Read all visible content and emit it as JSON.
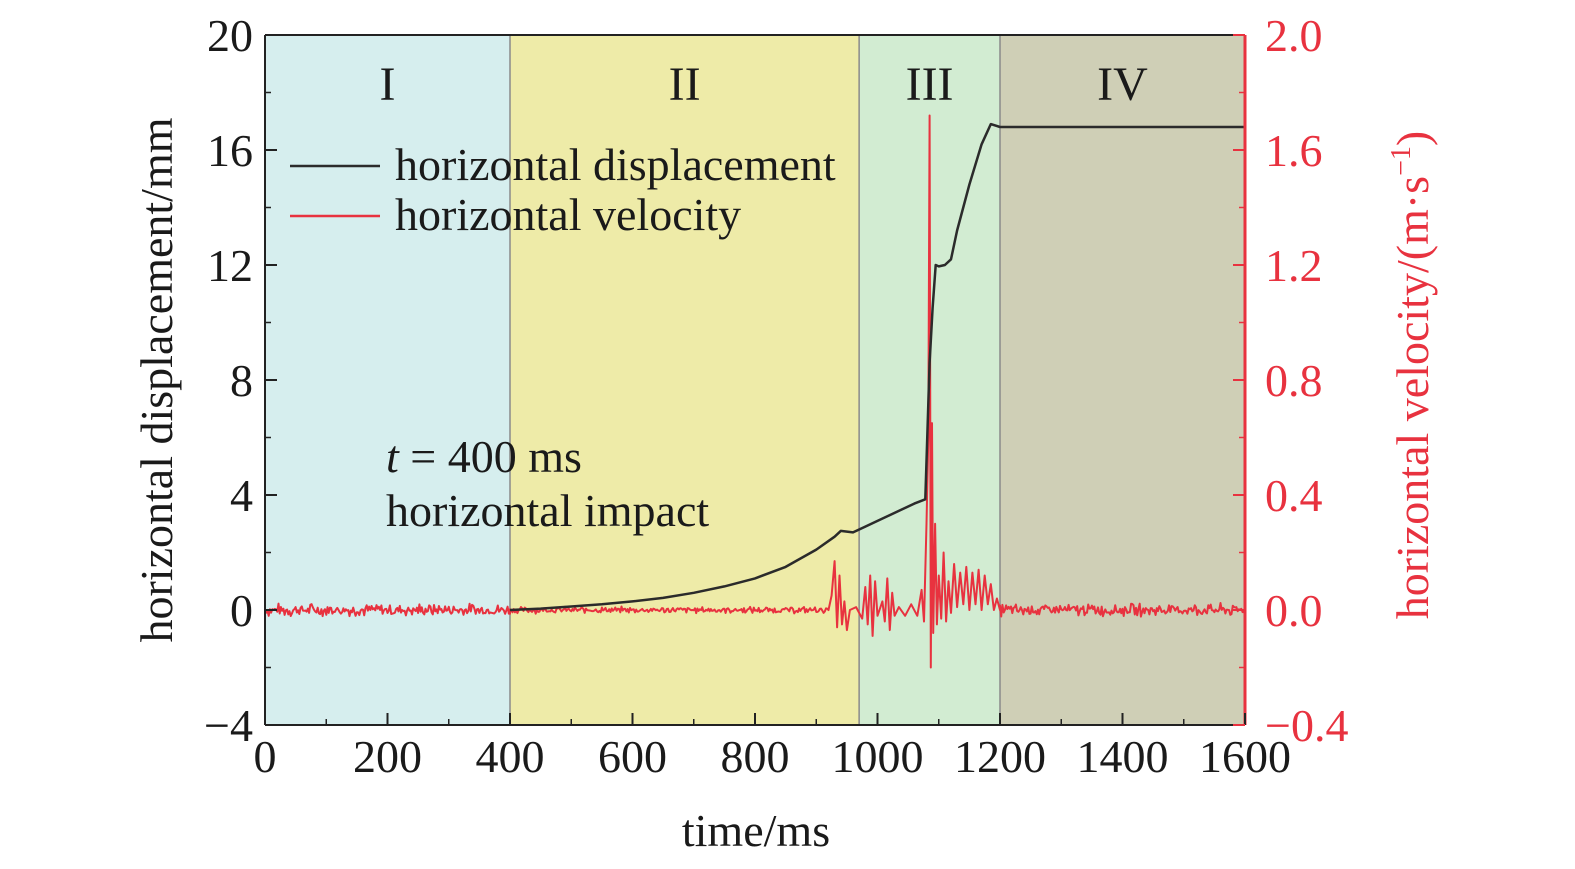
{
  "chart_data": {
    "type": "line",
    "xlabel": "time/ms",
    "ylabel_left": "horizontal displacement/mm",
    "ylabel_right_main": "horizontal velocity/(m·s",
    "ylabel_right_sup": "−1",
    "ylabel_right_close": ")",
    "xlim": [
      0,
      1600
    ],
    "ylim_left": [
      -4,
      20
    ],
    "ylim_right": [
      -0.4,
      2.0
    ],
    "x_ticks": [
      "0",
      "200",
      "400",
      "600",
      "800",
      "1000",
      "1200",
      "1400",
      "1600"
    ],
    "y_left_ticks": [
      "−4",
      "0",
      "4",
      "8",
      "12",
      "16",
      "20"
    ],
    "y_right_ticks": [
      "−0.4",
      "0.0",
      "0.4",
      "0.8",
      "1.2",
      "1.6",
      "2.0"
    ],
    "grid": false,
    "legend_position": "upper-left",
    "regions": [
      {
        "label": "I",
        "x0": 0,
        "x1": 400,
        "color": "#d6eeee"
      },
      {
        "label": "II",
        "x0": 400,
        "x1": 970,
        "color": "#eeeba8"
      },
      {
        "label": "III",
        "x0": 970,
        "x1": 1200,
        "color": "#d2ecd2"
      },
      {
        "label": "IV",
        "x0": 1200,
        "x1": 1600,
        "color": "#cfcfb6"
      }
    ],
    "annotation": {
      "line1_var": "t",
      "line1_rest": " = 400 ms",
      "line2": "horizontal impact"
    },
    "series": [
      {
        "name": "horizontal displacement",
        "axis": "left",
        "color": "#2b2b2b",
        "points": [
          [
            400,
            0.0
          ],
          [
            450,
            0.05
          ],
          [
            500,
            0.12
          ],
          [
            550,
            0.2
          ],
          [
            600,
            0.3
          ],
          [
            650,
            0.42
          ],
          [
            700,
            0.6
          ],
          [
            750,
            0.82
          ],
          [
            800,
            1.1
          ],
          [
            850,
            1.5
          ],
          [
            900,
            2.1
          ],
          [
            930,
            2.55
          ],
          [
            940,
            2.75
          ],
          [
            960,
            2.7
          ],
          [
            980,
            2.9
          ],
          [
            1000,
            3.1
          ],
          [
            1020,
            3.3
          ],
          [
            1040,
            3.5
          ],
          [
            1060,
            3.7
          ],
          [
            1078,
            3.85
          ],
          [
            1085,
            8.6
          ],
          [
            1090,
            10.5
          ],
          [
            1095,
            12.0
          ],
          [
            1100,
            11.95
          ],
          [
            1110,
            12.0
          ],
          [
            1120,
            12.2
          ],
          [
            1130,
            13.2
          ],
          [
            1150,
            14.8
          ],
          [
            1170,
            16.2
          ],
          [
            1185,
            16.9
          ],
          [
            1200,
            16.8
          ],
          [
            1300,
            16.8
          ],
          [
            1400,
            16.8
          ],
          [
            1500,
            16.8
          ],
          [
            1600,
            16.8
          ]
        ]
      },
      {
        "name": "horizontal velocity",
        "axis": "right",
        "color": "#e8323f",
        "noise_segments": [
          {
            "x0": 0,
            "x1": 400,
            "amplitude": 0.02
          },
          {
            "x0": 400,
            "x1": 920,
            "amplitude": 0.01
          },
          {
            "x0": 1200,
            "x1": 1600,
            "amplitude": 0.02
          }
        ],
        "points": [
          [
            920,
            0.0
          ],
          [
            925,
            0.05
          ],
          [
            930,
            0.17
          ],
          [
            934,
            -0.06
          ],
          [
            938,
            0.12
          ],
          [
            942,
            -0.05
          ],
          [
            946,
            0.03
          ],
          [
            950,
            -0.07
          ],
          [
            955,
            0.0
          ],
          [
            965,
            0.01
          ],
          [
            975,
            -0.03
          ],
          [
            980,
            0.08
          ],
          [
            984,
            -0.05
          ],
          [
            988,
            0.12
          ],
          [
            992,
            -0.09
          ],
          [
            996,
            0.1
          ],
          [
            1000,
            -0.02
          ],
          [
            1008,
            0.03
          ],
          [
            1012,
            -0.04
          ],
          [
            1016,
            0.11
          ],
          [
            1020,
            -0.07
          ],
          [
            1024,
            0.06
          ],
          [
            1028,
            -0.02
          ],
          [
            1035,
            0.01
          ],
          [
            1045,
            -0.02
          ],
          [
            1055,
            0.02
          ],
          [
            1065,
            -0.02
          ],
          [
            1072,
            0.07
          ],
          [
            1076,
            -0.04
          ],
          [
            1080,
            0.3
          ],
          [
            1083,
            0.6
          ],
          [
            1085,
            1.72
          ],
          [
            1087,
            -0.2
          ],
          [
            1089,
            0.65
          ],
          [
            1091,
            -0.08
          ],
          [
            1094,
            0.3
          ],
          [
            1097,
            -0.05
          ],
          [
            1100,
            0.12
          ],
          [
            1104,
            -0.03
          ],
          [
            1108,
            0.2
          ],
          [
            1112,
            -0.04
          ],
          [
            1116,
            0.1
          ],
          [
            1120,
            -0.01
          ],
          [
            1125,
            0.16
          ],
          [
            1130,
            0.01
          ],
          [
            1135,
            0.13
          ],
          [
            1140,
            0.02
          ],
          [
            1145,
            0.15
          ],
          [
            1150,
            0.0
          ],
          [
            1155,
            0.13
          ],
          [
            1160,
            0.02
          ],
          [
            1165,
            0.14
          ],
          [
            1170,
            0.0
          ],
          [
            1175,
            0.12
          ],
          [
            1180,
            0.02
          ],
          [
            1185,
            0.09
          ],
          [
            1190,
            0.0
          ],
          [
            1195,
            0.04
          ],
          [
            1200,
            0.0
          ]
        ]
      }
    ]
  }
}
